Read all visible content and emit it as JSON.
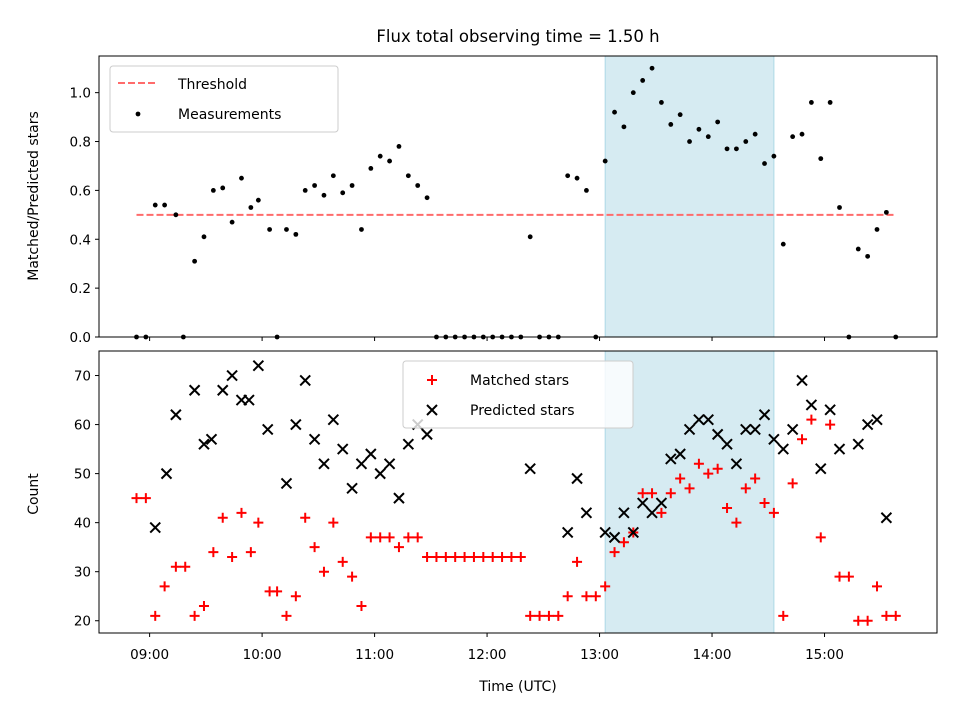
{
  "chart_data": [
    {
      "type": "scatter",
      "title": "Flux total observing time = 1.50 h",
      "xlabel": "",
      "ylabel": "Matched/Predicted stars",
      "xlim": [
        8.55,
        16.0
      ],
      "ylim": [
        0.0,
        1.15
      ],
      "yticks": [
        "0.0",
        "0.2",
        "0.4",
        "0.6",
        "0.8",
        "1.0"
      ],
      "grid": false,
      "legend_position": "upper-left",
      "shaded_region": {
        "x_start": "13:03",
        "x_end": "14:33",
        "color": "#add8e6"
      },
      "threshold": {
        "name": "Threshold",
        "value": 0.5,
        "x_start": "08:53",
        "x_end": "15:37",
        "color": "#ff6b6b"
      },
      "series": [
        {
          "name": "Measurements",
          "color": "#000000",
          "marker": "dot",
          "points": [
            [
              "08:53",
              0.0
            ],
            [
              "08:58",
              0.0
            ],
            [
              "09:03",
              0.54
            ],
            [
              "09:08",
              0.54
            ],
            [
              "09:14",
              0.5
            ],
            [
              "09:18",
              0.0
            ],
            [
              "09:24",
              0.31
            ],
            [
              "09:29",
              0.41
            ],
            [
              "09:34",
              0.6
            ],
            [
              "09:39",
              0.61
            ],
            [
              "09:44",
              0.47
            ],
            [
              "09:49",
              0.65
            ],
            [
              "09:54",
              0.53
            ],
            [
              "09:58",
              0.56
            ],
            [
              "10:04",
              0.44
            ],
            [
              "10:08",
              0.0
            ],
            [
              "10:13",
              0.44
            ],
            [
              "10:18",
              0.42
            ],
            [
              "10:23",
              0.6
            ],
            [
              "10:28",
              0.62
            ],
            [
              "10:33",
              0.58
            ],
            [
              "10:38",
              0.66
            ],
            [
              "10:43",
              0.59
            ],
            [
              "10:48",
              0.62
            ],
            [
              "10:53",
              0.44
            ],
            [
              "10:58",
              0.69
            ],
            [
              "11:03",
              0.74
            ],
            [
              "11:08",
              0.72
            ],
            [
              "11:13",
              0.78
            ],
            [
              "11:18",
              0.66
            ],
            [
              "11:23",
              0.62
            ],
            [
              "11:28",
              0.57
            ],
            [
              "11:33",
              0.0
            ],
            [
              "11:38",
              0.0
            ],
            [
              "11:43",
              0.0
            ],
            [
              "11:48",
              0.0
            ],
            [
              "11:53",
              0.0
            ],
            [
              "11:58",
              0.0
            ],
            [
              "12:03",
              0.0
            ],
            [
              "12:08",
              0.0
            ],
            [
              "12:13",
              0.0
            ],
            [
              "12:18",
              0.0
            ],
            [
              "12:23",
              0.41
            ],
            [
              "12:28",
              0.0
            ],
            [
              "12:33",
              0.0
            ],
            [
              "12:38",
              0.0
            ],
            [
              "12:43",
              0.66
            ],
            [
              "12:48",
              0.65
            ],
            [
              "12:53",
              0.6
            ],
            [
              "12:58",
              0.0
            ],
            [
              "13:03",
              0.72
            ],
            [
              "13:08",
              0.92
            ],
            [
              "13:13",
              0.86
            ],
            [
              "13:18",
              1.0
            ],
            [
              "13:23",
              1.05
            ],
            [
              "13:28",
              1.1
            ],
            [
              "13:33",
              0.96
            ],
            [
              "13:38",
              0.87
            ],
            [
              "13:43",
              0.91
            ],
            [
              "13:48",
              0.8
            ],
            [
              "13:53",
              0.85
            ],
            [
              "13:58",
              0.82
            ],
            [
              "14:03",
              0.88
            ],
            [
              "14:08",
              0.77
            ],
            [
              "14:13",
              0.77
            ],
            [
              "14:18",
              0.8
            ],
            [
              "14:23",
              0.83
            ],
            [
              "14:28",
              0.71
            ],
            [
              "14:33",
              0.74
            ],
            [
              "14:38",
              0.38
            ],
            [
              "14:43",
              0.82
            ],
            [
              "14:48",
              0.83
            ],
            [
              "14:53",
              0.96
            ],
            [
              "14:58",
              0.73
            ],
            [
              "15:03",
              0.96
            ],
            [
              "15:08",
              0.53
            ],
            [
              "15:13",
              0.0
            ],
            [
              "15:18",
              0.36
            ],
            [
              "15:23",
              0.33
            ],
            [
              "15:28",
              0.44
            ],
            [
              "15:33",
              0.51
            ],
            [
              "15:38",
              0.0
            ]
          ]
        }
      ]
    },
    {
      "type": "scatter",
      "title": "",
      "xlabel": "Time (UTC)",
      "ylabel": "Count",
      "xlim": [
        8.55,
        16.0
      ],
      "ylim": [
        17.5,
        75.0
      ],
      "yticks": [
        "20",
        "30",
        "40",
        "50",
        "60",
        "70"
      ],
      "xticks": [
        "09:00",
        "10:00",
        "11:00",
        "12:00",
        "13:00",
        "14:00",
        "15:00"
      ],
      "grid": false,
      "legend_position": "upper-center",
      "shaded_region": {
        "x_start": "13:03",
        "x_end": "14:33",
        "color": "#add8e6"
      },
      "series": [
        {
          "name": "Matched stars",
          "color": "#ff0000",
          "marker": "plus",
          "points": [
            [
              "08:53",
              45
            ],
            [
              "08:58",
              45
            ],
            [
              "09:03",
              21
            ],
            [
              "09:08",
              27
            ],
            [
              "09:14",
              31
            ],
            [
              "09:19",
              31
            ],
            [
              "09:24",
              21
            ],
            [
              "09:29",
              23
            ],
            [
              "09:34",
              34
            ],
            [
              "09:39",
              41
            ],
            [
              "09:44",
              33
            ],
            [
              "09:49",
              42
            ],
            [
              "09:54",
              34
            ],
            [
              "09:58",
              40
            ],
            [
              "10:04",
              26
            ],
            [
              "10:08",
              26
            ],
            [
              "10:13",
              21
            ],
            [
              "10:18",
              25
            ],
            [
              "10:23",
              41
            ],
            [
              "10:28",
              35
            ],
            [
              "10:33",
              30
            ],
            [
              "10:38",
              40
            ],
            [
              "10:43",
              32
            ],
            [
              "10:48",
              29
            ],
            [
              "10:53",
              23
            ],
            [
              "10:58",
              37
            ],
            [
              "11:03",
              37
            ],
            [
              "11:08",
              37
            ],
            [
              "11:13",
              35
            ],
            [
              "11:18",
              37
            ],
            [
              "11:23",
              37
            ],
            [
              "11:28",
              33
            ],
            [
              "11:33",
              33
            ],
            [
              "11:38",
              33
            ],
            [
              "11:43",
              33
            ],
            [
              "11:48",
              33
            ],
            [
              "11:53",
              33
            ],
            [
              "11:58",
              33
            ],
            [
              "12:03",
              33
            ],
            [
              "12:08",
              33
            ],
            [
              "12:13",
              33
            ],
            [
              "12:18",
              33
            ],
            [
              "12:23",
              21
            ],
            [
              "12:28",
              21
            ],
            [
              "12:33",
              21
            ],
            [
              "12:38",
              21
            ],
            [
              "12:43",
              25
            ],
            [
              "12:48",
              32
            ],
            [
              "12:53",
              25
            ],
            [
              "12:58",
              25
            ],
            [
              "13:03",
              27
            ],
            [
              "13:08",
              34
            ],
            [
              "13:13",
              36
            ],
            [
              "13:18",
              38
            ],
            [
              "13:23",
              46
            ],
            [
              "13:28",
              46
            ],
            [
              "13:33",
              42
            ],
            [
              "13:38",
              46
            ],
            [
              "13:43",
              49
            ],
            [
              "13:48",
              47
            ],
            [
              "13:53",
              52
            ],
            [
              "13:58",
              50
            ],
            [
              "14:03",
              51
            ],
            [
              "14:08",
              43
            ],
            [
              "14:13",
              40
            ],
            [
              "14:18",
              47
            ],
            [
              "14:23",
              49
            ],
            [
              "14:28",
              44
            ],
            [
              "14:33",
              42
            ],
            [
              "14:38",
              21
            ],
            [
              "14:43",
              48
            ],
            [
              "14:48",
              57
            ],
            [
              "14:53",
              61
            ],
            [
              "14:58",
              37
            ],
            [
              "15:03",
              60
            ],
            [
              "15:08",
              29
            ],
            [
              "15:13",
              29
            ],
            [
              "15:18",
              20
            ],
            [
              "15:23",
              20
            ],
            [
              "15:28",
              27
            ],
            [
              "15:33",
              21
            ],
            [
              "15:38",
              21
            ]
          ]
        },
        {
          "name": "Predicted stars",
          "color": "#000000",
          "marker": "x",
          "points": [
            [
              "09:03",
              39
            ],
            [
              "09:09",
              50
            ],
            [
              "09:14",
              62
            ],
            [
              "09:24",
              67
            ],
            [
              "09:29",
              56
            ],
            [
              "09:33",
              57
            ],
            [
              "09:39",
              67
            ],
            [
              "09:44",
              70
            ],
            [
              "09:49",
              65
            ],
            [
              "09:53",
              65
            ],
            [
              "09:58",
              72
            ],
            [
              "10:03",
              59
            ],
            [
              "10:13",
              48
            ],
            [
              "10:18",
              60
            ],
            [
              "10:23",
              69
            ],
            [
              "10:28",
              57
            ],
            [
              "10:33",
              52
            ],
            [
              "10:38",
              61
            ],
            [
              "10:43",
              55
            ],
            [
              "10:48",
              47
            ],
            [
              "10:53",
              52
            ],
            [
              "10:58",
              54
            ],
            [
              "11:03",
              50
            ],
            [
              "11:08",
              52
            ],
            [
              "11:13",
              45
            ],
            [
              "11:18",
              56
            ],
            [
              "11:23",
              60
            ],
            [
              "11:28",
              58
            ],
            [
              "12:23",
              51
            ],
            [
              "12:43",
              38
            ],
            [
              "12:48",
              49
            ],
            [
              "12:53",
              42
            ],
            [
              "13:03",
              38
            ],
            [
              "13:08",
              37
            ],
            [
              "13:13",
              42
            ],
            [
              "13:18",
              38
            ],
            [
              "13:23",
              44
            ],
            [
              "13:28",
              42
            ],
            [
              "13:33",
              44
            ],
            [
              "13:38",
              53
            ],
            [
              "13:43",
              54
            ],
            [
              "13:48",
              59
            ],
            [
              "13:53",
              61
            ],
            [
              "13:58",
              61
            ],
            [
              "14:03",
              58
            ],
            [
              "14:08",
              56
            ],
            [
              "14:13",
              52
            ],
            [
              "14:18",
              59
            ],
            [
              "14:23",
              59
            ],
            [
              "14:28",
              62
            ],
            [
              "14:33",
              57
            ],
            [
              "14:38",
              55
            ],
            [
              "14:43",
              59
            ],
            [
              "14:48",
              69
            ],
            [
              "14:53",
              64
            ],
            [
              "14:58",
              51
            ],
            [
              "15:03",
              63
            ],
            [
              "15:08",
              55
            ],
            [
              "15:18",
              56
            ],
            [
              "15:23",
              60
            ],
            [
              "15:28",
              61
            ],
            [
              "15:33",
              41
            ]
          ]
        }
      ]
    }
  ]
}
